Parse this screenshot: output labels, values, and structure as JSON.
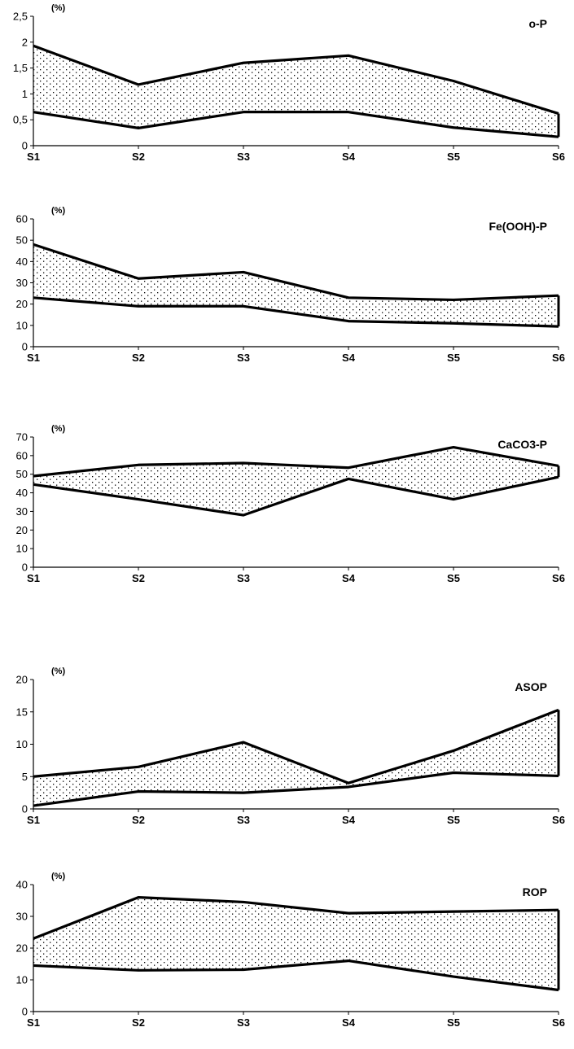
{
  "chart_data": [
    {
      "type": "area",
      "title": "o-P",
      "unit": "(%)",
      "categories": [
        "S1",
        "S2",
        "S3",
        "S4",
        "S5",
        "S6"
      ],
      "ylim": [
        0,
        2.5
      ],
      "yticks": [
        "0",
        "0,5",
        "1",
        "1,5",
        "2",
        "2,5"
      ],
      "series": [
        {
          "values": [
            1.93,
            1.18,
            1.6,
            1.74,
            1.25,
            0.62
          ]
        },
        {
          "values": [
            0.65,
            0.34,
            0.65,
            0.65,
            0.35,
            0.17
          ]
        }
      ],
      "fill": "dotted band between series",
      "grid": false
    },
    {
      "type": "area",
      "title": "Fe(OOH)-P",
      "unit": "(%)",
      "categories": [
        "S1",
        "S2",
        "S3",
        "S4",
        "S5",
        "S6"
      ],
      "ylim": [
        0,
        60
      ],
      "yticks": [
        "0",
        "10",
        "20",
        "30",
        "40",
        "50",
        "60"
      ],
      "series": [
        {
          "values": [
            48,
            32,
            35,
            23,
            22,
            24
          ]
        },
        {
          "values": [
            23,
            19,
            19,
            12,
            11,
            9.5
          ]
        }
      ],
      "fill": "dotted band between series",
      "grid": false
    },
    {
      "type": "area",
      "title": "CaCO3-P",
      "unit": "(%)",
      "categories": [
        "S1",
        "S2",
        "S3",
        "S4",
        "S5",
        "S6"
      ],
      "ylim": [
        0,
        70
      ],
      "yticks": [
        "0",
        "10",
        "20",
        "30",
        "40",
        "50",
        "60",
        "70"
      ],
      "series": [
        {
          "values": [
            49,
            55,
            56,
            53.5,
            64.5,
            54.5
          ]
        },
        {
          "values": [
            44.5,
            36.5,
            28,
            47.5,
            36.5,
            48.5
          ]
        }
      ],
      "fill": "dotted band between series",
      "grid": false
    },
    {
      "type": "area",
      "title": "ASOP",
      "unit": "(%)",
      "categories": [
        "S1",
        "S2",
        "S3",
        "S4",
        "S5",
        "S6"
      ],
      "ylim": [
        0,
        20
      ],
      "yticks": [
        "0",
        "5",
        "10",
        "15",
        "20"
      ],
      "series": [
        {
          "values": [
            5,
            6.5,
            10.3,
            4,
            9,
            15.3
          ]
        },
        {
          "values": [
            0.5,
            2.7,
            2.5,
            3.4,
            5.6,
            5.1
          ]
        }
      ],
      "fill": "dotted band between series",
      "grid": false
    },
    {
      "type": "area",
      "title": "ROP",
      "unit": "(%)",
      "categories": [
        "S1",
        "S2",
        "S3",
        "S4",
        "S5",
        "S6"
      ],
      "ylim": [
        0,
        40
      ],
      "yticks": [
        "0",
        "10",
        "20",
        "30",
        "40"
      ],
      "series": [
        {
          "values": [
            23,
            36,
            34.5,
            31,
            31.5,
            32
          ]
        },
        {
          "values": [
            14.5,
            13,
            13.2,
            16,
            11,
            6.8
          ]
        }
      ],
      "fill": "dotted band between series",
      "grid": false
    }
  ]
}
